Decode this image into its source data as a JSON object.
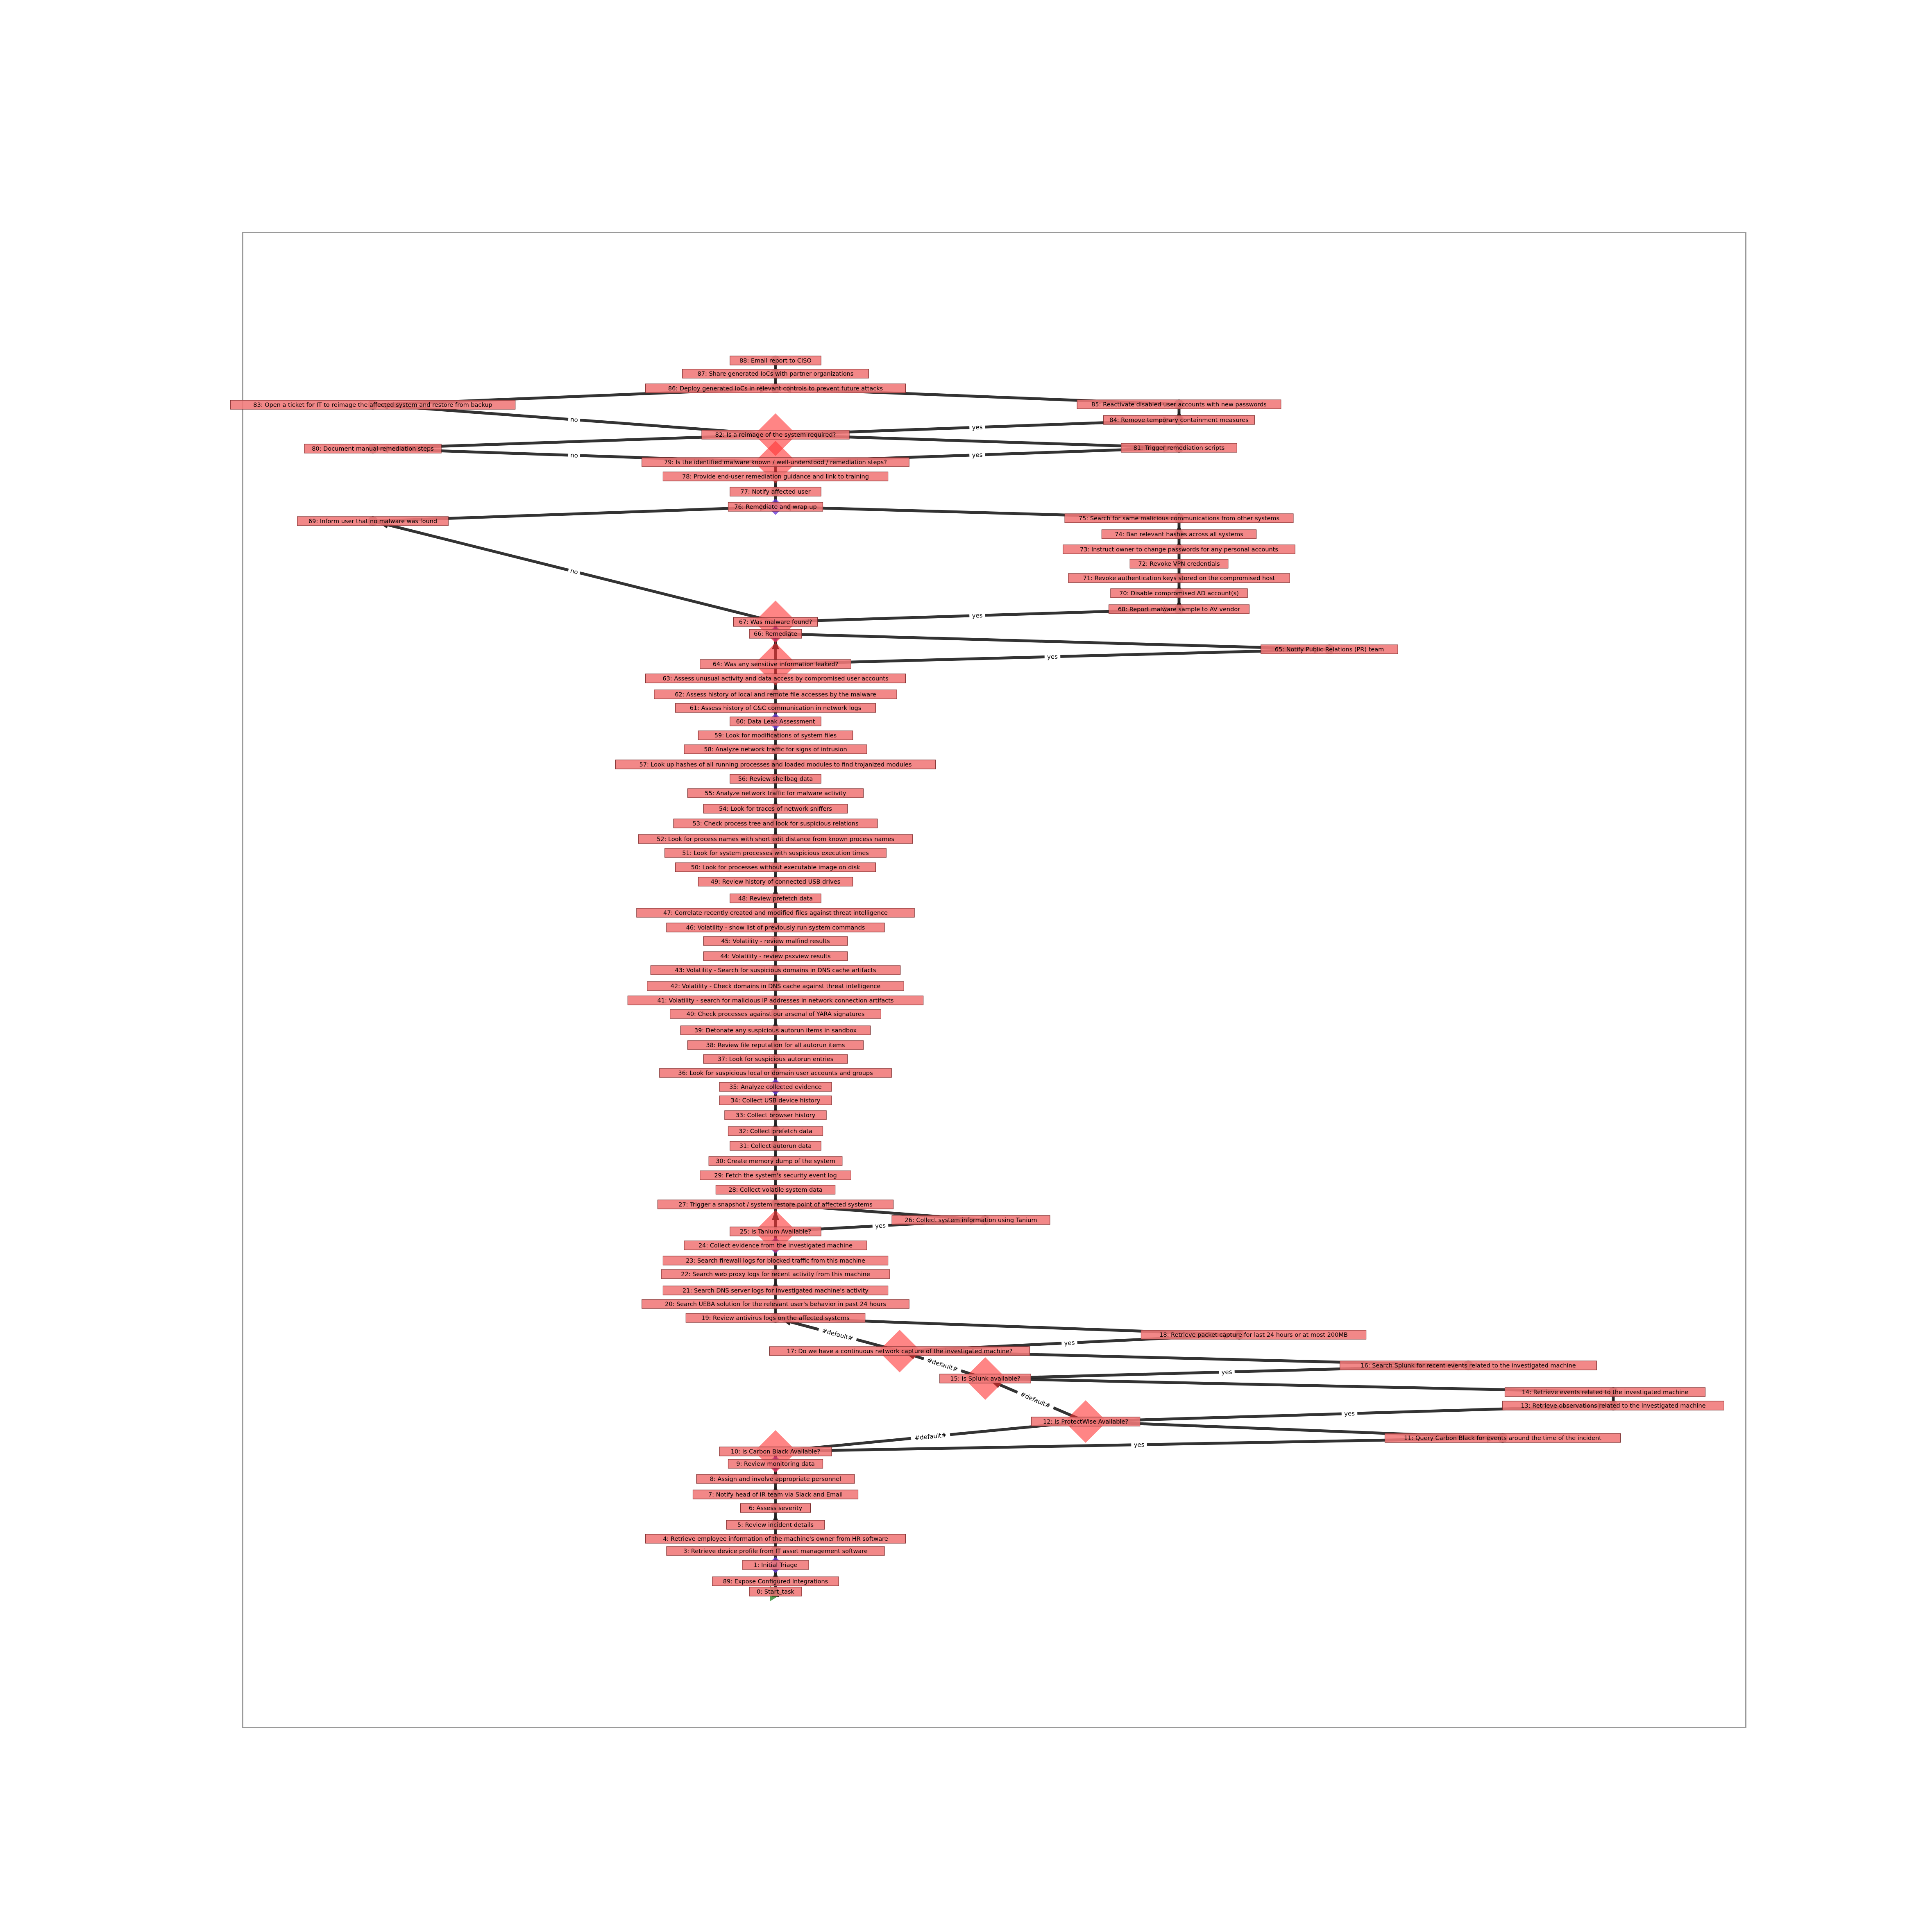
{
  "colors": {
    "edge": "#222222",
    "label_bg": "#f07777",
    "label_border": "#7a2a2a",
    "decision": "#ff3333",
    "task": "#333333",
    "start": "#2e8b2e",
    "merge": "#6a3fd8"
  },
  "diagram": {
    "nodes": [
      {
        "id": "n0",
        "kind": "start",
        "label": "0: Start_task"
      },
      {
        "id": "n89",
        "kind": "task",
        "label": "89: Expose Configured Integrations"
      },
      {
        "id": "n1",
        "kind": "merge",
        "label": "1: Initial Triage"
      },
      {
        "id": "n3",
        "kind": "task",
        "label": "3: Retrieve device profile from IT asset management software"
      },
      {
        "id": "n4",
        "kind": "task",
        "label": "4: Retrieve employee information of the machine's owner from HR software"
      },
      {
        "id": "n5",
        "kind": "task",
        "label": "5: Review incident details"
      },
      {
        "id": "n6",
        "kind": "task",
        "label": "6: Assess severity"
      },
      {
        "id": "n7",
        "kind": "task",
        "label": "7: Notify head of IR team via Slack and Email"
      },
      {
        "id": "n8",
        "kind": "task",
        "label": "8: Assign and involve appropriate personnel"
      },
      {
        "id": "n9",
        "kind": "merge",
        "label": "9: Review monitoring data"
      },
      {
        "id": "n10",
        "kind": "decision",
        "label": "10: Is Carbon Black Available?"
      },
      {
        "id": "n11",
        "kind": "task",
        "label": "11: Query Carbon Black for events around the time of the incident"
      },
      {
        "id": "n12",
        "kind": "decision",
        "label": "12: Is ProtectWise Available?"
      },
      {
        "id": "n13",
        "kind": "task",
        "label": "13: Retrieve observations related to the investigated machine"
      },
      {
        "id": "n14",
        "kind": "task",
        "label": "14: Retrieve events related to the investigated machine"
      },
      {
        "id": "n15",
        "kind": "decision",
        "label": "15: Is Splunk available?"
      },
      {
        "id": "n16",
        "kind": "task",
        "label": "16: Search Splunk for recent events related to the investigated machine"
      },
      {
        "id": "n17",
        "kind": "decision",
        "label": "17: Do we have a continuous network capture of the investigated machine?"
      },
      {
        "id": "n18",
        "kind": "task",
        "label": "18: Retrieve packet capture for last 24 hours or at most 200MB"
      },
      {
        "id": "n19",
        "kind": "task",
        "label": "19: Review antivirus logs on the affected systems"
      },
      {
        "id": "n20",
        "kind": "task",
        "label": "20: Search UEBA solution for the relevant user's behavior in past 24 hours"
      },
      {
        "id": "n21",
        "kind": "task",
        "label": "21: Search DNS server logs for investigated machine's activity"
      },
      {
        "id": "n22",
        "kind": "task",
        "label": "22: Search web proxy logs for recent activity from this machine"
      },
      {
        "id": "n23",
        "kind": "task",
        "label": "23: Search firewall logs for blocked traffic from this machine"
      },
      {
        "id": "n24",
        "kind": "merge",
        "label": "24: Collect evidence from the investigated machine"
      },
      {
        "id": "n25",
        "kind": "decision",
        "label": "25: Is Tanium Available?"
      },
      {
        "id": "n26",
        "kind": "task",
        "label": "26: Collect system information using Tanium"
      },
      {
        "id": "n27",
        "kind": "task",
        "label": "27: Trigger a snapshot / system restore point of affected systems"
      },
      {
        "id": "n28",
        "kind": "task",
        "label": "28: Collect volatile system data"
      },
      {
        "id": "n29",
        "kind": "task",
        "label": "29: Fetch the system's security event log"
      },
      {
        "id": "n30",
        "kind": "task",
        "label": "30: Create memory dump of the system"
      },
      {
        "id": "n31",
        "kind": "task",
        "label": "31: Collect autorun data"
      },
      {
        "id": "n32",
        "kind": "task",
        "label": "32: Collect prefetch data"
      },
      {
        "id": "n33",
        "kind": "task",
        "label": "33: Collect browser history"
      },
      {
        "id": "n34",
        "kind": "task",
        "label": "34: Collect USB device history"
      },
      {
        "id": "n35",
        "kind": "merge",
        "label": "35: Analyze collected evidence"
      },
      {
        "id": "n36",
        "kind": "task",
        "label": "36: Look for suspicious local or domain user accounts and groups"
      },
      {
        "id": "n37",
        "kind": "task",
        "label": "37: Look for suspicious autorun entries"
      },
      {
        "id": "n38",
        "kind": "task",
        "label": "38: Review file reputation for all autorun items"
      },
      {
        "id": "n39",
        "kind": "task",
        "label": "39: Detonate any suspicious autorun items in sandbox"
      },
      {
        "id": "n40",
        "kind": "task",
        "label": "40: Check processes against our arsenal of YARA signatures"
      },
      {
        "id": "n41",
        "kind": "task",
        "label": "41: Volatility - search for malicious IP addresses in network connection artifacts"
      },
      {
        "id": "n42",
        "kind": "task",
        "label": "42: Volatility - Check domains in DNS cache against threat intelligence"
      },
      {
        "id": "n43",
        "kind": "task",
        "label": "43: Volatility - Search for suspicious domains in DNS cache artifacts"
      },
      {
        "id": "n44",
        "kind": "task",
        "label": "44: Volatility - review psxview results"
      },
      {
        "id": "n45",
        "kind": "task",
        "label": "45: Volatility - review malfind results"
      },
      {
        "id": "n46",
        "kind": "task",
        "label": "46: Volatility - show list of previously run system commands"
      },
      {
        "id": "n47",
        "kind": "task",
        "label": "47: Correlate recently created and modified files against threat intelligence"
      },
      {
        "id": "n48",
        "kind": "task",
        "label": "48: Review prefetch data"
      },
      {
        "id": "n49",
        "kind": "task",
        "label": "49: Review history of connected USB drives"
      },
      {
        "id": "n50",
        "kind": "task",
        "label": "50: Look for processes without executable image on disk"
      },
      {
        "id": "n51",
        "kind": "task",
        "label": "51: Look for system processes with suspicious execution times"
      },
      {
        "id": "n52",
        "kind": "task",
        "label": "52: Look for process names with short edit distance from known process names"
      },
      {
        "id": "n53",
        "kind": "task",
        "label": "53: Check process tree and look for suspicious relations"
      },
      {
        "id": "n54",
        "kind": "task",
        "label": "54: Look for traces of network sniffers"
      },
      {
        "id": "n55",
        "kind": "task",
        "label": "55: Analyze network traffic for malware activity"
      },
      {
        "id": "n56",
        "kind": "task",
        "label": "56: Review shellbag data"
      },
      {
        "id": "n57",
        "kind": "task",
        "label": "57: Look up hashes of all running processes and loaded modules to find trojanized modules"
      },
      {
        "id": "n58",
        "kind": "task",
        "label": "58: Analyze network traffic for signs of intrusion"
      },
      {
        "id": "n59",
        "kind": "task",
        "label": "59: Look for modifications of system files"
      },
      {
        "id": "n60",
        "kind": "merge",
        "label": "60: Data Leak Assessment"
      },
      {
        "id": "n61",
        "kind": "task",
        "label": "61: Assess history of C&C communication in network logs"
      },
      {
        "id": "n62",
        "kind": "task",
        "label": "62: Assess history of local and remote file accesses by the malware"
      },
      {
        "id": "n63",
        "kind": "task",
        "label": "63: Assess unusual activity and data access by compromised user accounts"
      },
      {
        "id": "n64",
        "kind": "decision",
        "label": "64: Was any sensitive information leaked?"
      },
      {
        "id": "n65",
        "kind": "task",
        "label": "65: Notify Public Relations (PR) team"
      },
      {
        "id": "n66",
        "kind": "merge",
        "label": "66: Remediate"
      },
      {
        "id": "n67",
        "kind": "decision",
        "label": "67: Was malware found?"
      },
      {
        "id": "n68",
        "kind": "task",
        "label": "68: Report malware sample to AV vendor"
      },
      {
        "id": "n69",
        "kind": "task",
        "label": "69: Inform user that no malware was found"
      },
      {
        "id": "n70",
        "kind": "task",
        "label": "70: Disable compromised AD account(s)"
      },
      {
        "id": "n71",
        "kind": "task",
        "label": "71: Revoke authentication keys stored on the compromised host"
      },
      {
        "id": "n72",
        "kind": "task",
        "label": "72: Revoke VPN credentials"
      },
      {
        "id": "n73",
        "kind": "task",
        "label": "73: Instruct owner to change passwords for any personal accounts"
      },
      {
        "id": "n74",
        "kind": "task",
        "label": "74: Ban relevant hashes across all systems"
      },
      {
        "id": "n75",
        "kind": "task",
        "label": "75: Search for same malicious communications from other systems"
      },
      {
        "id": "n76",
        "kind": "merge",
        "label": "76: Remediate and wrap up"
      },
      {
        "id": "n77",
        "kind": "task",
        "label": "77: Notify affected user"
      },
      {
        "id": "n78",
        "kind": "task",
        "label": "78: Provide end-user remediation guidance and link to training"
      },
      {
        "id": "n79",
        "kind": "decision",
        "label": "79: Is the identified malware known / well-understood / remediation steps?"
      },
      {
        "id": "n80",
        "kind": "task",
        "label": "80: Document manual remediation steps"
      },
      {
        "id": "n81",
        "kind": "task",
        "label": "81: Trigger remediation scripts"
      },
      {
        "id": "n82",
        "kind": "decision",
        "label": "82: Is a reimage of the system required?"
      },
      {
        "id": "n83",
        "kind": "task",
        "label": "83: Open a ticket for IT to reimage the affected system and restore from backup"
      },
      {
        "id": "n84",
        "kind": "task",
        "label": "84: Remove temporary containment measures"
      },
      {
        "id": "n85",
        "kind": "task",
        "label": "85: Reactivate disabled user accounts with new passwords"
      },
      {
        "id": "n86",
        "kind": "task",
        "label": "86: Deploy generated IoCs in relevant controls to prevent future attacks"
      },
      {
        "id": "n87",
        "kind": "task",
        "label": "87: Share generated IoCs with partner organizations"
      },
      {
        "id": "n88",
        "kind": "task",
        "label": "88: Email report to CISO"
      }
    ],
    "edges": [
      {
        "from": "n0",
        "to": "n89",
        "label": ""
      },
      {
        "from": "n89",
        "to": "n1",
        "label": ""
      },
      {
        "from": "n1",
        "to": "n3",
        "label": ""
      },
      {
        "from": "n3",
        "to": "n4",
        "label": ""
      },
      {
        "from": "n4",
        "to": "n5",
        "label": ""
      },
      {
        "from": "n5",
        "to": "n6",
        "label": ""
      },
      {
        "from": "n6",
        "to": "n7",
        "label": ""
      },
      {
        "from": "n7",
        "to": "n8",
        "label": ""
      },
      {
        "from": "n8",
        "to": "n9",
        "label": ""
      },
      {
        "from": "n9",
        "to": "n10",
        "label": ""
      },
      {
        "from": "n10",
        "to": "n11",
        "label": "yes"
      },
      {
        "from": "n10",
        "to": "n12",
        "label": "#default#"
      },
      {
        "from": "n11",
        "to": "n12",
        "label": ""
      },
      {
        "from": "n12",
        "to": "n13",
        "label": "yes"
      },
      {
        "from": "n12",
        "to": "n15",
        "label": "#default#"
      },
      {
        "from": "n13",
        "to": "n14",
        "label": ""
      },
      {
        "from": "n14",
        "to": "n15",
        "label": ""
      },
      {
        "from": "n15",
        "to": "n16",
        "label": "yes"
      },
      {
        "from": "n15",
        "to": "n17",
        "label": "#default#"
      },
      {
        "from": "n16",
        "to": "n17",
        "label": ""
      },
      {
        "from": "n17",
        "to": "n18",
        "label": "yes"
      },
      {
        "from": "n17",
        "to": "n19",
        "label": "#default#"
      },
      {
        "from": "n18",
        "to": "n19",
        "label": ""
      },
      {
        "from": "n19",
        "to": "n20",
        "label": ""
      },
      {
        "from": "n20",
        "to": "n21",
        "label": ""
      },
      {
        "from": "n21",
        "to": "n22",
        "label": ""
      },
      {
        "from": "n22",
        "to": "n23",
        "label": ""
      },
      {
        "from": "n23",
        "to": "n24",
        "label": ""
      },
      {
        "from": "n24",
        "to": "n25",
        "label": ""
      },
      {
        "from": "n25",
        "to": "n26",
        "label": "yes"
      },
      {
        "from": "n25",
        "to": "n27",
        "label": ""
      },
      {
        "from": "n26",
        "to": "n27",
        "label": ""
      },
      {
        "from": "n27",
        "to": "n28",
        "label": ""
      },
      {
        "from": "n28",
        "to": "n29",
        "label": ""
      },
      {
        "from": "n29",
        "to": "n30",
        "label": ""
      },
      {
        "from": "n30",
        "to": "n31",
        "label": ""
      },
      {
        "from": "n31",
        "to": "n32",
        "label": ""
      },
      {
        "from": "n32",
        "to": "n33",
        "label": ""
      },
      {
        "from": "n33",
        "to": "n34",
        "label": ""
      },
      {
        "from": "n34",
        "to": "n35",
        "label": ""
      },
      {
        "from": "n35",
        "to": "n36",
        "label": ""
      },
      {
        "from": "n36",
        "to": "n37",
        "label": ""
      },
      {
        "from": "n37",
        "to": "n38",
        "label": ""
      },
      {
        "from": "n38",
        "to": "n39",
        "label": ""
      },
      {
        "from": "n39",
        "to": "n40",
        "label": ""
      },
      {
        "from": "n40",
        "to": "n41",
        "label": ""
      },
      {
        "from": "n41",
        "to": "n42",
        "label": ""
      },
      {
        "from": "n42",
        "to": "n43",
        "label": ""
      },
      {
        "from": "n43",
        "to": "n44",
        "label": ""
      },
      {
        "from": "n44",
        "to": "n45",
        "label": ""
      },
      {
        "from": "n45",
        "to": "n46",
        "label": ""
      },
      {
        "from": "n46",
        "to": "n47",
        "label": ""
      },
      {
        "from": "n47",
        "to": "n48",
        "label": ""
      },
      {
        "from": "n48",
        "to": "n49",
        "label": ""
      },
      {
        "from": "n49",
        "to": "n50",
        "label": ""
      },
      {
        "from": "n50",
        "to": "n51",
        "label": ""
      },
      {
        "from": "n51",
        "to": "n52",
        "label": ""
      },
      {
        "from": "n52",
        "to": "n53",
        "label": ""
      },
      {
        "from": "n53",
        "to": "n54",
        "label": ""
      },
      {
        "from": "n54",
        "to": "n55",
        "label": ""
      },
      {
        "from": "n55",
        "to": "n56",
        "label": ""
      },
      {
        "from": "n56",
        "to": "n57",
        "label": ""
      },
      {
        "from": "n57",
        "to": "n58",
        "label": ""
      },
      {
        "from": "n58",
        "to": "n59",
        "label": ""
      },
      {
        "from": "n59",
        "to": "n60",
        "label": ""
      },
      {
        "from": "n60",
        "to": "n61",
        "label": ""
      },
      {
        "from": "n61",
        "to": "n62",
        "label": ""
      },
      {
        "from": "n62",
        "to": "n63",
        "label": ""
      },
      {
        "from": "n63",
        "to": "n64",
        "label": ""
      },
      {
        "from": "n64",
        "to": "n65",
        "label": "yes"
      },
      {
        "from": "n64",
        "to": "n66",
        "label": ""
      },
      {
        "from": "n65",
        "to": "n66",
        "label": ""
      },
      {
        "from": "n66",
        "to": "n67",
        "label": ""
      },
      {
        "from": "n67",
        "to": "n68",
        "label": "yes"
      },
      {
        "from": "n67",
        "to": "n69",
        "label": "no"
      },
      {
        "from": "n68",
        "to": "n70",
        "label": ""
      },
      {
        "from": "n70",
        "to": "n71",
        "label": ""
      },
      {
        "from": "n71",
        "to": "n72",
        "label": ""
      },
      {
        "from": "n72",
        "to": "n73",
        "label": ""
      },
      {
        "from": "n73",
        "to": "n74",
        "label": ""
      },
      {
        "from": "n74",
        "to": "n75",
        "label": ""
      },
      {
        "from": "n75",
        "to": "n76",
        "label": ""
      },
      {
        "from": "n69",
        "to": "n76",
        "label": ""
      },
      {
        "from": "n76",
        "to": "n77",
        "label": ""
      },
      {
        "from": "n77",
        "to": "n78",
        "label": ""
      },
      {
        "from": "n78",
        "to": "n79",
        "label": ""
      },
      {
        "from": "n79",
        "to": "n81",
        "label": "yes"
      },
      {
        "from": "n79",
        "to": "n80",
        "label": "no"
      },
      {
        "from": "n81",
        "to": "n82",
        "label": ""
      },
      {
        "from": "n80",
        "to": "n82",
        "label": ""
      },
      {
        "from": "n82",
        "to": "n84",
        "label": "yes"
      },
      {
        "from": "n82",
        "to": "n83",
        "label": "no"
      },
      {
        "from": "n84",
        "to": "n85",
        "label": ""
      },
      {
        "from": "n83",
        "to": "n86",
        "label": ""
      },
      {
        "from": "n85",
        "to": "n86",
        "label": ""
      },
      {
        "from": "n86",
        "to": "n87",
        "label": ""
      },
      {
        "from": "n87",
        "to": "n88",
        "label": ""
      }
    ]
  }
}
